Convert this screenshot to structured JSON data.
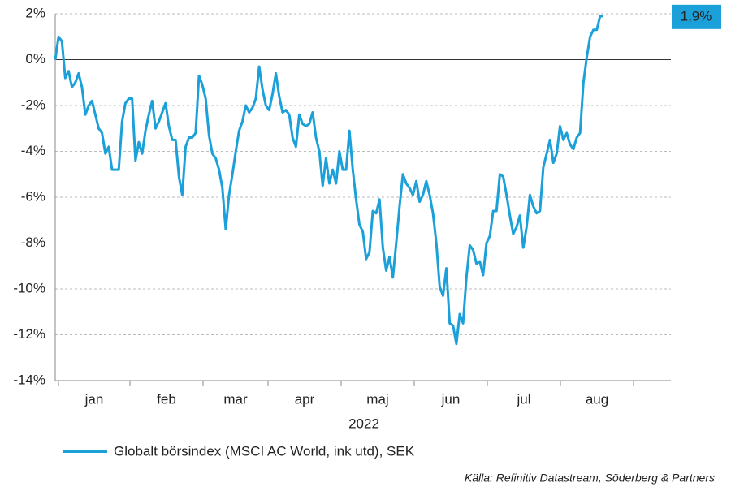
{
  "chart_data": {
    "type": "line",
    "x_labels": [
      "jan",
      "feb",
      "mar",
      "apr",
      "maj",
      "jun",
      "jul",
      "aug"
    ],
    "x_axis_label": "2022",
    "series": [
      {
        "name": "Globalt börsindex (MSCI AC World, ink utd), SEK",
        "color": "#1ba0da",
        "values": [
          0,
          1.0,
          0.8,
          -0.8,
          -0.5,
          -1.2,
          -1.0,
          -0.6,
          -1.2,
          -2.4,
          -2.0,
          -1.8,
          -2.4,
          -3.0,
          -3.2,
          -4.1,
          -3.8,
          -4.8,
          -4.8,
          -4.8,
          -2.7,
          -1.9,
          -1.7,
          -1.7,
          -4.4,
          -3.6,
          -4.1,
          -3.1,
          -2.4,
          -1.8,
          -3.0,
          -2.7,
          -2.3,
          -1.9,
          -2.9,
          -3.5,
          -3.5,
          -5.1,
          -5.9,
          -3.8,
          -3.4,
          -3.4,
          -3.2,
          -0.7,
          -1.1,
          -1.7,
          -3.3,
          -4.1,
          -4.3,
          -4.8,
          -5.6,
          -7.4,
          -5.9,
          -5.0,
          -4.0,
          -3.1,
          -2.7,
          -2.0,
          -2.3,
          -2.1,
          -1.7,
          -0.3,
          -1.3,
          -2.0,
          -2.2,
          -1.5,
          -0.6,
          -1.6,
          -2.3,
          -2.2,
          -2.4,
          -3.4,
          -3.8,
          -2.4,
          -2.8,
          -2.9,
          -2.8,
          -2.3,
          -3.4,
          -4.0,
          -5.5,
          -4.3,
          -5.4,
          -4.8,
          -5.4,
          -4.0,
          -4.8,
          -4.8,
          -3.1,
          -4.8,
          -6.1,
          -7.2,
          -7.5,
          -8.7,
          -8.4,
          -6.6,
          -6.7,
          -6.1,
          -8.2,
          -9.2,
          -8.6,
          -9.5,
          -8.0,
          -6.4,
          -5.0,
          -5.4,
          -5.6,
          -5.9,
          -5.3,
          -6.2,
          -5.9,
          -5.3,
          -5.9,
          -6.7,
          -8.0,
          -9.9,
          -10.3,
          -9.1,
          -11.5,
          -11.6,
          -12.4,
          -11.1,
          -11.5,
          -9.5,
          -8.1,
          -8.3,
          -8.9,
          -8.8,
          -9.4,
          -8.0,
          -7.7,
          -6.6,
          -6.6,
          -5.0,
          -5.1,
          -5.9,
          -6.8,
          -7.6,
          -7.3,
          -6.8,
          -8.2,
          -7.3,
          -5.9,
          -6.4,
          -6.7,
          -6.6,
          -4.7,
          -4.1,
          -3.5,
          -4.5,
          -4.1,
          -2.9,
          -3.5,
          -3.2,
          -3.7,
          -3.9,
          -3.4,
          -3.2,
          -1.0,
          0.1,
          1.0,
          1.3,
          1.3,
          1.9,
          1.9
        ]
      }
    ],
    "end_label": {
      "value": 1.9,
      "label": "1,9%"
    },
    "ylim": [
      -14,
      2
    ],
    "yticks": [
      {
        "value": -14,
        "label": "-14%"
      },
      {
        "value": -12,
        "label": "-12%"
      },
      {
        "value": -10,
        "label": "-10%"
      },
      {
        "value": -8,
        "label": "-8%"
      },
      {
        "value": -6,
        "label": "-6%"
      },
      {
        "value": -4,
        "label": "-4%"
      },
      {
        "value": -2,
        "label": "-2%"
      },
      {
        "value": 0,
        "label": "0%"
      },
      {
        "value": 2,
        "label": "2%"
      }
    ],
    "grid": true,
    "source": "Källa: Refinitiv Datastream, Söderberg & Partners"
  }
}
